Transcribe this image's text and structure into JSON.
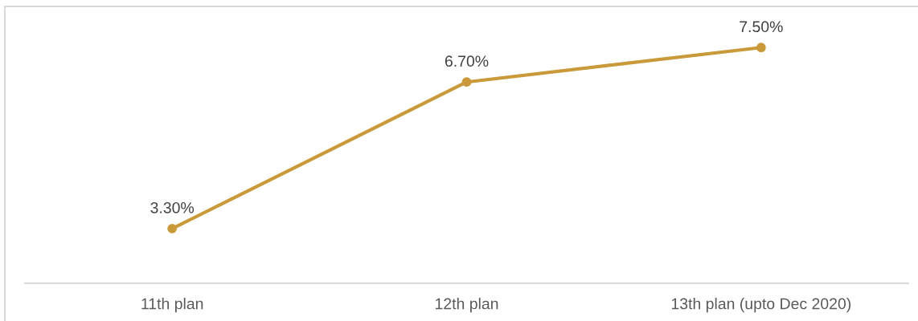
{
  "chart_data": {
    "type": "line",
    "categories": [
      "11th plan",
      "12th plan",
      "13th plan (upto Dec 2020)"
    ],
    "values": [
      3.3,
      6.7,
      7.5
    ],
    "value_labels": [
      "3.30%",
      "6.70%",
      "7.50%"
    ],
    "color": "#c9993a",
    "marker": "circle",
    "line_style": "solid",
    "tick_labels": "x"
  }
}
